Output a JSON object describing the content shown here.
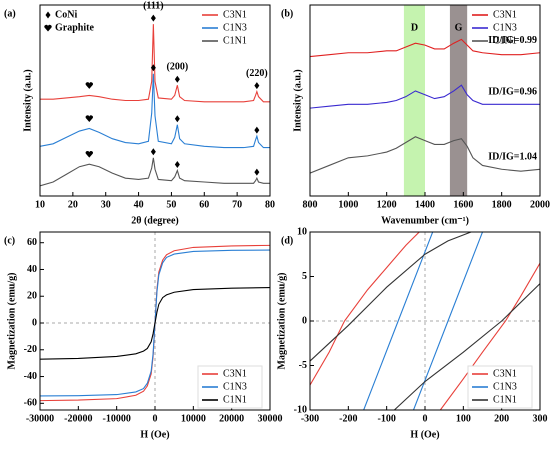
{
  "chart_data": [
    {
      "type": "line",
      "panel_label": "(a)",
      "xlabel": "2θ (degree)",
      "ylabel": "Intensity (a.u.)",
      "xlim": [
        10,
        80
      ],
      "ylim": [
        0,
        15
      ],
      "xticks": [
        10,
        20,
        30,
        40,
        50,
        60,
        70,
        80
      ],
      "legend": "upper right",
      "phase_legend": [
        {
          "symbol": "diamond",
          "label": "CoNi"
        },
        {
          "symbol": "heart",
          "label": "Graphite"
        }
      ],
      "peak_labels": [
        {
          "label": "(111)",
          "x": 44.5
        },
        {
          "label": "(200)",
          "x": 51.8
        },
        {
          "label": "(220)",
          "x": 76
        }
      ],
      "peak_markers": {
        "diamond": [
          44.5,
          51.8,
          76
        ],
        "heart": [
          25
        ]
      },
      "series": [
        {
          "name": "C3N1",
          "color": "#e8403a",
          "x": [
            10,
            14,
            18,
            22,
            25,
            28,
            32,
            36,
            40,
            43,
            44,
            44.5,
            45,
            46,
            50,
            51,
            51.8,
            52.5,
            54,
            60,
            66,
            72,
            75,
            75.6,
            76,
            76.5,
            78,
            80
          ],
          "values": [
            7.6,
            7.6,
            7.7,
            7.8,
            7.9,
            7.8,
            7.6,
            7.5,
            7.5,
            7.6,
            9,
            13.5,
            9,
            7.7,
            7.6,
            7.9,
            8.7,
            7.8,
            7.5,
            7.4,
            7.4,
            7.4,
            7.5,
            7.9,
            8.2,
            7.8,
            7.4,
            7.4
          ]
        },
        {
          "name": "C1N3",
          "color": "#2a7fd4",
          "x": [
            10,
            14,
            18,
            22,
            25,
            28,
            32,
            36,
            40,
            43,
            44,
            44.5,
            45,
            46,
            50,
            51,
            51.8,
            52.5,
            54,
            60,
            66,
            72,
            75,
            75.6,
            76,
            76.5,
            78,
            80
          ],
          "values": [
            3.9,
            4.1,
            4.6,
            5.1,
            5.3,
            5.0,
            4.5,
            4.2,
            4.1,
            4.3,
            6.5,
            9.6,
            6.3,
            4.3,
            4.1,
            4.6,
            5.6,
            4.5,
            4.1,
            3.9,
            3.8,
            3.8,
            3.9,
            4.4,
            4.7,
            4.2,
            3.8,
            3.8
          ]
        },
        {
          "name": "C1N1",
          "color": "#555555",
          "x": [
            10,
            14,
            18,
            22,
            25,
            28,
            32,
            36,
            40,
            43,
            44,
            44.5,
            45,
            46,
            50,
            51,
            51.8,
            52.5,
            54,
            60,
            66,
            72,
            75,
            75.6,
            76,
            76.5,
            78,
            80
          ],
          "values": [
            0.8,
            1.1,
            1.7,
            2.3,
            2.5,
            2.3,
            1.8,
            1.4,
            1.3,
            1.4,
            2.2,
            3.0,
            2.1,
            1.3,
            1.2,
            1.5,
            2.0,
            1.4,
            1.2,
            1.1,
            1.0,
            1.0,
            1.0,
            1.2,
            1.4,
            1.1,
            1.0,
            1.0
          ]
        }
      ]
    },
    {
      "type": "line",
      "panel_label": "(b)",
      "xlabel": "Wavenumber (cm⁻¹)",
      "ylabel": "Intensity (a.u.)",
      "xlim": [
        800,
        2000
      ],
      "ylim": [
        0,
        10
      ],
      "xticks": [
        800,
        1000,
        1200,
        1400,
        1600,
        1800,
        2000
      ],
      "legend": "upper right",
      "bands": [
        {
          "label": "D",
          "range": [
            1290,
            1400
          ],
          "color": "#bff2a6"
        },
        {
          "label": "G",
          "range": [
            1530,
            1620
          ],
          "color": "#8f8585"
        }
      ],
      "ratio_labels": [
        "ID/IG=0.99",
        "ID/IG=0.96",
        "ID/IG=1.04"
      ],
      "series": [
        {
          "name": "C3N1",
          "color": "#e02020",
          "x": [
            800,
            900,
            1000,
            1100,
            1200,
            1250,
            1300,
            1350,
            1400,
            1450,
            1500,
            1550,
            1590,
            1620,
            1650,
            1700,
            1800,
            1900,
            2000
          ],
          "values": [
            7.3,
            7.4,
            7.5,
            7.5,
            7.6,
            7.6,
            7.8,
            8.0,
            7.9,
            7.7,
            7.7,
            8.0,
            8.2,
            7.9,
            7.6,
            7.5,
            7.4,
            7.4,
            7.5
          ]
        },
        {
          "name": "C1N3",
          "color": "#3a2ad0",
          "x": [
            800,
            900,
            1000,
            1100,
            1200,
            1250,
            1300,
            1350,
            1400,
            1450,
            1500,
            1550,
            1590,
            1620,
            1650,
            1700,
            1800,
            1900,
            2000
          ],
          "values": [
            4.6,
            4.7,
            4.8,
            4.8,
            4.9,
            5.0,
            5.2,
            5.5,
            5.3,
            5.1,
            5.2,
            5.5,
            5.8,
            5.3,
            5.0,
            4.8,
            4.8,
            4.8,
            4.8
          ]
        },
        {
          "name": "C1N1",
          "color": "#555555",
          "x": [
            800,
            900,
            1000,
            1100,
            1200,
            1250,
            1300,
            1350,
            1400,
            1450,
            1500,
            1550,
            1590,
            1620,
            1650,
            1700,
            1800,
            1900,
            2000
          ],
          "values": [
            1.2,
            1.6,
            2.0,
            2.1,
            2.3,
            2.5,
            2.8,
            3.1,
            2.9,
            2.7,
            2.7,
            2.9,
            3.0,
            2.6,
            2.0,
            1.6,
            1.4,
            1.3,
            1.4
          ]
        }
      ]
    },
    {
      "type": "line",
      "panel_label": "(c)",
      "xlabel": "H (Oe)",
      "ylabel": "Magnetization (emu/g)",
      "xlim": [
        -30000,
        30000
      ],
      "ylim": [
        -65,
        68
      ],
      "xticks": [
        -30000,
        -20000,
        -10000,
        0,
        10000,
        20000,
        30000
      ],
      "yticks": [
        -60,
        -40,
        -20,
        0,
        20,
        40,
        60
      ],
      "zero_lines": true,
      "legend": "lower right",
      "series": [
        {
          "name": "C3N1",
          "color": "#e8403a",
          "x": [
            -30000,
            -20000,
            -10000,
            -5000,
            -3000,
            -2000,
            -1000,
            -500,
            0,
            500,
            1000,
            2000,
            3000,
            5000,
            10000,
            20000,
            30000
          ],
          "values": [
            -58,
            -57.6,
            -56.5,
            -54,
            -51,
            -47,
            -38,
            -25,
            0,
            25,
            38,
            47,
            51,
            54,
            56.5,
            57.6,
            58
          ]
        },
        {
          "name": "C1N3",
          "color": "#2a7fd4",
          "x": [
            -30000,
            -20000,
            -10000,
            -5000,
            -3000,
            -2000,
            -1000,
            -500,
            0,
            500,
            1000,
            2000,
            3000,
            5000,
            10000,
            20000,
            30000
          ],
          "values": [
            -54.5,
            -54.3,
            -53.5,
            -51.5,
            -49,
            -45,
            -36,
            -23,
            0,
            23,
            36,
            45,
            49,
            51.5,
            53.5,
            54.3,
            54.5
          ]
        },
        {
          "name": "C1N1",
          "color": "#000000",
          "x": [
            -30000,
            -20000,
            -10000,
            -5000,
            -3000,
            -2000,
            -1000,
            -500,
            0,
            500,
            1000,
            2000,
            3000,
            5000,
            10000,
            20000,
            30000
          ],
          "values": [
            -27,
            -26.5,
            -25,
            -23,
            -21,
            -19,
            -14,
            -8,
            0,
            8,
            14,
            19,
            21,
            23,
            25,
            26,
            26.5
          ]
        }
      ]
    },
    {
      "type": "line",
      "panel_label": "(d)",
      "xlabel": "H (Oe)",
      "ylabel": "Magnetization (emu/g)",
      "xlim": [
        -300,
        300
      ],
      "ylim": [
        -10,
        10
      ],
      "xticks": [
        -300,
        -200,
        -100,
        0,
        100,
        200,
        300
      ],
      "yticks": [
        -10,
        -5,
        0,
        5,
        10
      ],
      "zero_lines": true,
      "legend": "lower right",
      "series": [
        {
          "name": "C3N1",
          "color": "#e8403a",
          "x": [
            -300,
            -250,
            -210,
            -150,
            -100,
            -50,
            -15,
            null,
            40,
            100,
            150,
            210,
            250,
            300
          ],
          "values": [
            -7.2,
            -3.5,
            0,
            3.5,
            6,
            8.5,
            10,
            null,
            -10,
            -6.5,
            -3.5,
            0,
            2.8,
            6.5
          ]
        },
        {
          "name": "C1N3",
          "color": "#2a7fd4",
          "x": [
            -160,
            -70,
            20,
            null,
            -30,
            60,
            150
          ],
          "values": [
            -10,
            0,
            10,
            null,
            -10,
            0,
            10
          ]
        },
        {
          "name": "C1N1",
          "color": "#333333",
          "x": [
            -300,
            -200,
            -100,
            0,
            60,
            120,
            null,
            -80,
            0,
            100,
            200,
            300
          ],
          "values": [
            -4.5,
            -0.5,
            3.8,
            7.5,
            9,
            10,
            null,
            -10,
            -6.8,
            -3.5,
            0,
            4.2
          ]
        }
      ]
    }
  ]
}
